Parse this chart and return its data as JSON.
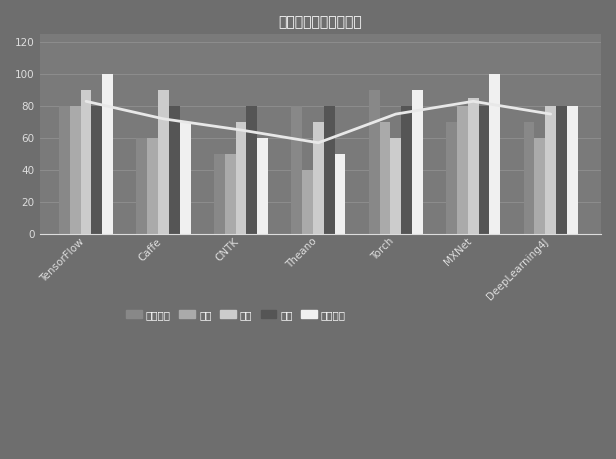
{
  "title": "主流深度学习框架对比",
  "categories": [
    "TensorFlow",
    "Caffe",
    "CNTK",
    "Theano",
    "Torch",
    "MXNet",
    "DeepLearning4J"
  ],
  "series_names": [
    "模型设计",
    "接口",
    "部署",
    "性能",
    "架构设计"
  ],
  "series_values": {
    "模型设计": [
      80,
      60,
      50,
      80,
      90,
      70,
      70
    ],
    "接口": [
      80,
      60,
      50,
      40,
      70,
      80,
      60
    ],
    "部署": [
      90,
      90,
      70,
      70,
      60,
      85,
      80
    ],
    "性能": [
      80,
      80,
      80,
      80,
      80,
      80,
      80
    ],
    "架构设计": [
      100,
      70,
      60,
      50,
      90,
      100,
      80
    ]
  },
  "line_values": [
    83,
    72,
    65,
    57,
    75,
    83,
    75
  ],
  "bar_colors": {
    "模型设计": "#888888",
    "接口": "#aaaaaa",
    "部署": "#cccccc",
    "性能": "#555555",
    "架构设计": "#f0f0f0"
  },
  "line_color": "#e8e8e8",
  "fig_facecolor": "#6e6e6e",
  "axes_facecolor": "#7a7a7a",
  "grid_color": "#9a9a9a",
  "text_color": "#ffffff",
  "tick_color": "#dddddd",
  "ylim": [
    0,
    125
  ],
  "yticks": [
    0,
    20,
    40,
    60,
    80,
    100,
    120
  ],
  "bar_width": 0.14,
  "title_fontsize": 11,
  "tick_fontsize": 7.5,
  "legend_fontsize": 7.5
}
